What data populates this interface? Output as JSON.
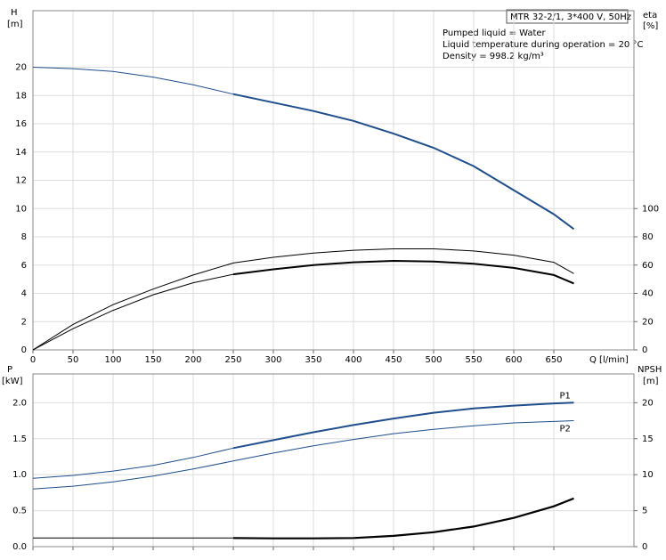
{
  "chart_data": [
    {
      "type": "line",
      "ylabel": "H",
      "yunit": "[m]",
      "y2label": "eta",
      "y2unit": "[%]",
      "xlabel": "Q [l/min]",
      "info_box": "MTR 32-2/1, 3*400 V, 50Hz",
      "info_lines": [
        "Pumped liquid = Water",
        "Liquid temperature during operation = 20 °C",
        "Density = 998.2 kg/m³"
      ],
      "x": [
        0,
        50,
        100,
        150,
        200,
        250,
        300,
        350,
        400,
        450,
        500,
        550,
        600,
        650,
        675
      ],
      "xlim": [
        0,
        750
      ],
      "xticks": [
        0,
        50,
        100,
        150,
        200,
        250,
        300,
        350,
        400,
        450,
        500,
        550,
        600,
        650
      ],
      "ylim": [
        0,
        24
      ],
      "yticks": [
        0,
        2,
        4,
        6,
        8,
        10,
        12,
        14,
        16,
        18,
        20
      ],
      "y2lim": [
        0,
        240
      ],
      "y2ticks": [
        0,
        20,
        40,
        60,
        80,
        100
      ],
      "grid": true,
      "series": [
        {
          "color": "#1f4e8c",
          "linewidth": 1,
          "values": [
            20,
            19.9,
            19.7,
            19.3,
            18.75,
            18.1,
            null,
            null,
            null,
            null,
            null,
            null,
            null,
            null,
            null
          ]
        },
        {
          "color": "#1f4e8c",
          "linewidth": 2,
          "values": [
            null,
            null,
            null,
            null,
            null,
            18.1,
            17.5,
            16.9,
            16.2,
            15.3,
            14.3,
            13.0,
            11.3,
            9.6,
            8.55
          ]
        },
        {
          "color": "#000000",
          "linewidth": 1,
          "axis": "y2",
          "values": [
            0,
            18,
            32,
            43,
            53,
            61.5,
            65.5,
            68.5,
            70.5,
            71.5,
            71.5,
            70,
            67,
            62,
            54
          ]
        },
        {
          "color": "#000000",
          "linewidth": 1,
          "axis": "y2",
          "values": [
            0,
            15,
            28,
            39,
            47.5,
            53.5,
            null,
            null,
            null,
            null,
            null,
            null,
            null,
            null,
            null
          ]
        },
        {
          "color": "#000000",
          "linewidth": 2,
          "axis": "y2",
          "values": [
            null,
            null,
            null,
            null,
            null,
            53.5,
            57,
            60,
            62,
            63,
            62.5,
            61,
            58,
            53,
            47
          ]
        }
      ]
    },
    {
      "type": "line",
      "ylabel": "P",
      "yunit": "[kW]",
      "y2label": "NPSH",
      "y2unit": "[m]",
      "x": [
        0,
        50,
        100,
        150,
        200,
        250,
        300,
        350,
        400,
        450,
        500,
        550,
        600,
        650,
        675
      ],
      "xlim": [
        0,
        750
      ],
      "xticks": [
        0,
        50,
        100,
        150,
        200,
        250,
        300,
        350,
        400,
        450,
        500,
        550,
        600,
        650
      ],
      "ylim": [
        0,
        2.4
      ],
      "yticks": [
        {
          "value": 0,
          "label": "0.0"
        },
        0.5,
        {
          "value": 1,
          "label": "1.0"
        },
        1.5,
        {
          "value": 2,
          "label": "2.0"
        }
      ],
      "y2lim": [
        0,
        24
      ],
      "y2ticks": [
        0,
        5,
        10,
        15,
        20
      ],
      "grid": true,
      "series": [
        {
          "color": "#1f4e8c",
          "linewidth": 1,
          "values": [
            0.95,
            0.99,
            1.05,
            1.13,
            1.24,
            1.37,
            null,
            null,
            null,
            null,
            null,
            null,
            null,
            null,
            null
          ]
        },
        {
          "name": "P1",
          "color": "#1f4e8c",
          "linewidth": 2,
          "values": [
            null,
            null,
            null,
            null,
            null,
            1.37,
            1.48,
            1.59,
            1.69,
            1.78,
            1.86,
            1.92,
            1.96,
            1.99,
            2.0
          ]
        },
        {
          "name": "P2",
          "color": "#1f4e8c",
          "linewidth": 1,
          "values": [
            0.8,
            0.84,
            0.9,
            0.98,
            1.08,
            1.19,
            1.3,
            1.4,
            1.49,
            1.57,
            1.63,
            1.68,
            1.72,
            1.74,
            1.75
          ]
        },
        {
          "color": "#000000",
          "linewidth": 1,
          "axis": "y2",
          "values": [
            1.2,
            1.2,
            1.2,
            1.2,
            1.2,
            1.2,
            null,
            null,
            null,
            null,
            null,
            null,
            null,
            null,
            null
          ]
        },
        {
          "color": "#000000",
          "linewidth": 2.2,
          "axis": "y2",
          "values": [
            null,
            null,
            null,
            null,
            null,
            1.2,
            1.15,
            1.15,
            1.2,
            1.5,
            2.0,
            2.8,
            4.0,
            5.6,
            6.7
          ]
        }
      ]
    }
  ]
}
